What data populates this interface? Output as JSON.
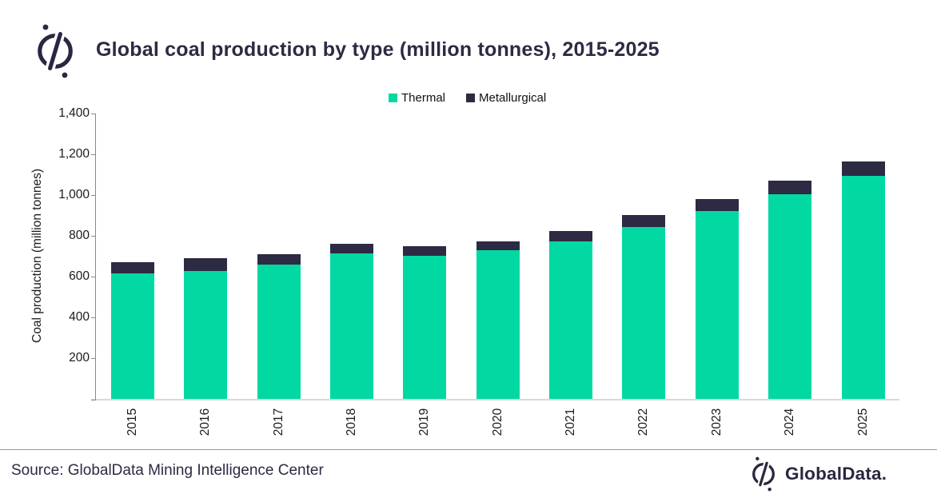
{
  "header": {
    "title": "Global coal production by type (million tonnes), 2015-2025",
    "logo_icon": "globaldata-mark"
  },
  "chart_data": {
    "type": "bar",
    "stacked": true,
    "title": "Global coal production by type (million tonnes), 2015-2025",
    "categories": [
      "2015",
      "2016",
      "2017",
      "2018",
      "2019",
      "2020",
      "2021",
      "2022",
      "2023",
      "2024",
      "2025"
    ],
    "series": [
      {
        "name": "Thermal",
        "color": "#02D9A2",
        "values": [
          615,
          627,
          661,
          715,
          702,
          728,
          772,
          842,
          921,
          1004,
          1094
        ]
      },
      {
        "name": "Metallurgical",
        "color": "#2D2A43",
        "values": [
          58,
          64,
          51,
          46,
          47,
          46,
          51,
          60,
          59,
          66,
          70
        ]
      }
    ],
    "xlabel": "",
    "ylabel": "Coal production (million tonnes)",
    "ylim": [
      0,
      1400
    ],
    "yticks": [
      200,
      400,
      600,
      800,
      1000,
      1200,
      1400
    ],
    "ytick_labels": [
      "200",
      "400",
      "600",
      "800",
      "1,000",
      "1,200",
      "1,400"
    ],
    "grid": false,
    "legend_position": "top-center"
  },
  "footer": {
    "source": "Source: GlobalData Mining Intelligence Center",
    "brand": "GlobalData.",
    "brand_icon": "globaldata-mark"
  },
  "colors": {
    "accent_green": "#02D9A2",
    "navy": "#2D2A43",
    "axis_gray": "#8a8a8a",
    "baseline_gray": "#d9d9d9"
  }
}
